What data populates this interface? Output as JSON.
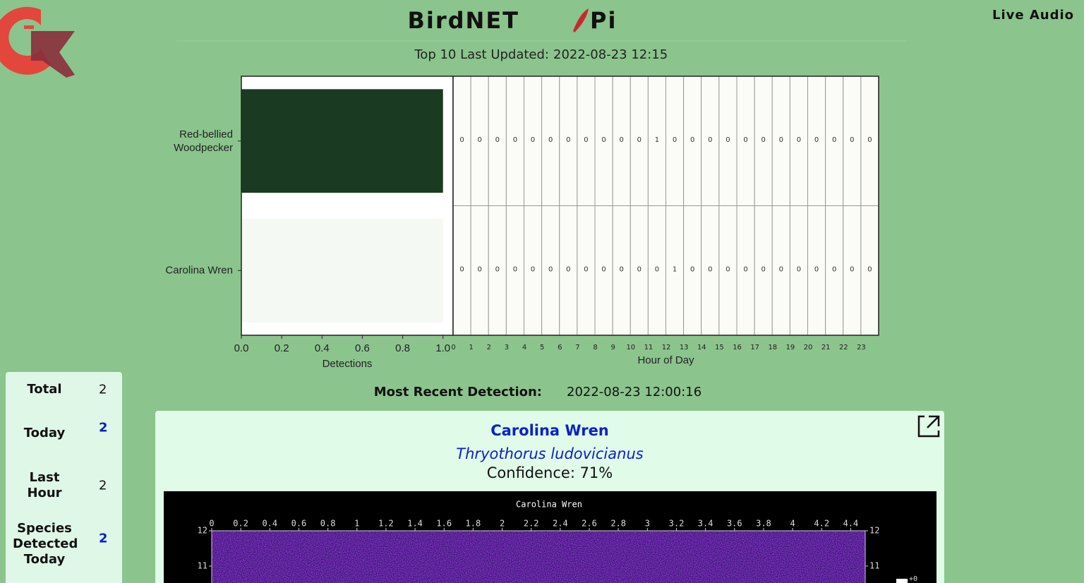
{
  "header": {
    "title_left": "BirdNET",
    "title_right": "Pi",
    "live_audio": "Live Audio"
  },
  "top10": {
    "label": "Top 10 Last Updated:",
    "updated": "2022-08-23 12:15"
  },
  "chart_data": [
    {
      "type": "bar",
      "orientation": "horizontal",
      "categories": [
        "Red-bellied Woodpecker",
        "Carolina Wren"
      ],
      "values": [
        1,
        1
      ],
      "colors": [
        "#1b3a22",
        "#f5f9f3"
      ],
      "xlim": [
        0,
        1.05
      ],
      "xticks": [
        {
          "value": 0,
          "label": "0.0"
        },
        {
          "value": 0.2,
          "label": "0.2"
        },
        {
          "value": 0.4,
          "label": "0.4"
        },
        {
          "value": 0.6,
          "label": "0.6"
        },
        {
          "value": 0.8,
          "label": "0.8"
        },
        {
          "value": 1,
          "label": "1.0"
        }
      ],
      "xlabel": "Detections"
    },
    {
      "type": "heatmap",
      "categories": [
        0,
        1,
        2,
        3,
        4,
        5,
        6,
        7,
        8,
        9,
        10,
        11,
        12,
        13,
        14,
        15,
        16,
        17,
        18,
        19,
        20,
        21,
        22,
        23
      ],
      "rows": [
        [
          0,
          0,
          0,
          0,
          0,
          0,
          0,
          0,
          0,
          0,
          0,
          1,
          0,
          0,
          0,
          0,
          0,
          0,
          0,
          0,
          0,
          0,
          0,
          0
        ],
        [
          0,
          0,
          0,
          0,
          0,
          0,
          0,
          0,
          0,
          0,
          0,
          0,
          1,
          0,
          0,
          0,
          0,
          0,
          0,
          0,
          0,
          0,
          0,
          0
        ]
      ],
      "xlabel": "Hour of Day"
    },
    {
      "type": "spectrogram",
      "title": "Carolina Wren",
      "xlim": [
        0,
        4.5
      ],
      "xticks": [
        0,
        0.2,
        0.4,
        0.6,
        0.8,
        1,
        1.2,
        1.4,
        1.6,
        1.8,
        2,
        2.2,
        2.4,
        2.6,
        2.8,
        3,
        3.2,
        3.4,
        3.6,
        3.8,
        4,
        4.2,
        4.4
      ],
      "ylim": [
        0,
        12
      ],
      "yticks": [
        12,
        11
      ],
      "colorbar_label": "+0"
    }
  ],
  "stats": [
    {
      "label": "Total",
      "value": 2
    },
    {
      "label": "Today",
      "value": 2
    },
    {
      "label": "Last Hour",
      "value": 2
    },
    {
      "label": "Species Detected Today",
      "value": 2
    }
  ],
  "recent": {
    "label": "Most Recent Detection:",
    "time": "2022-08-23 12:00:16",
    "common_name": "Carolina Wren",
    "scientific_name": "Thryothorus ludovicianus",
    "confidence": "Confidence: 71%"
  }
}
